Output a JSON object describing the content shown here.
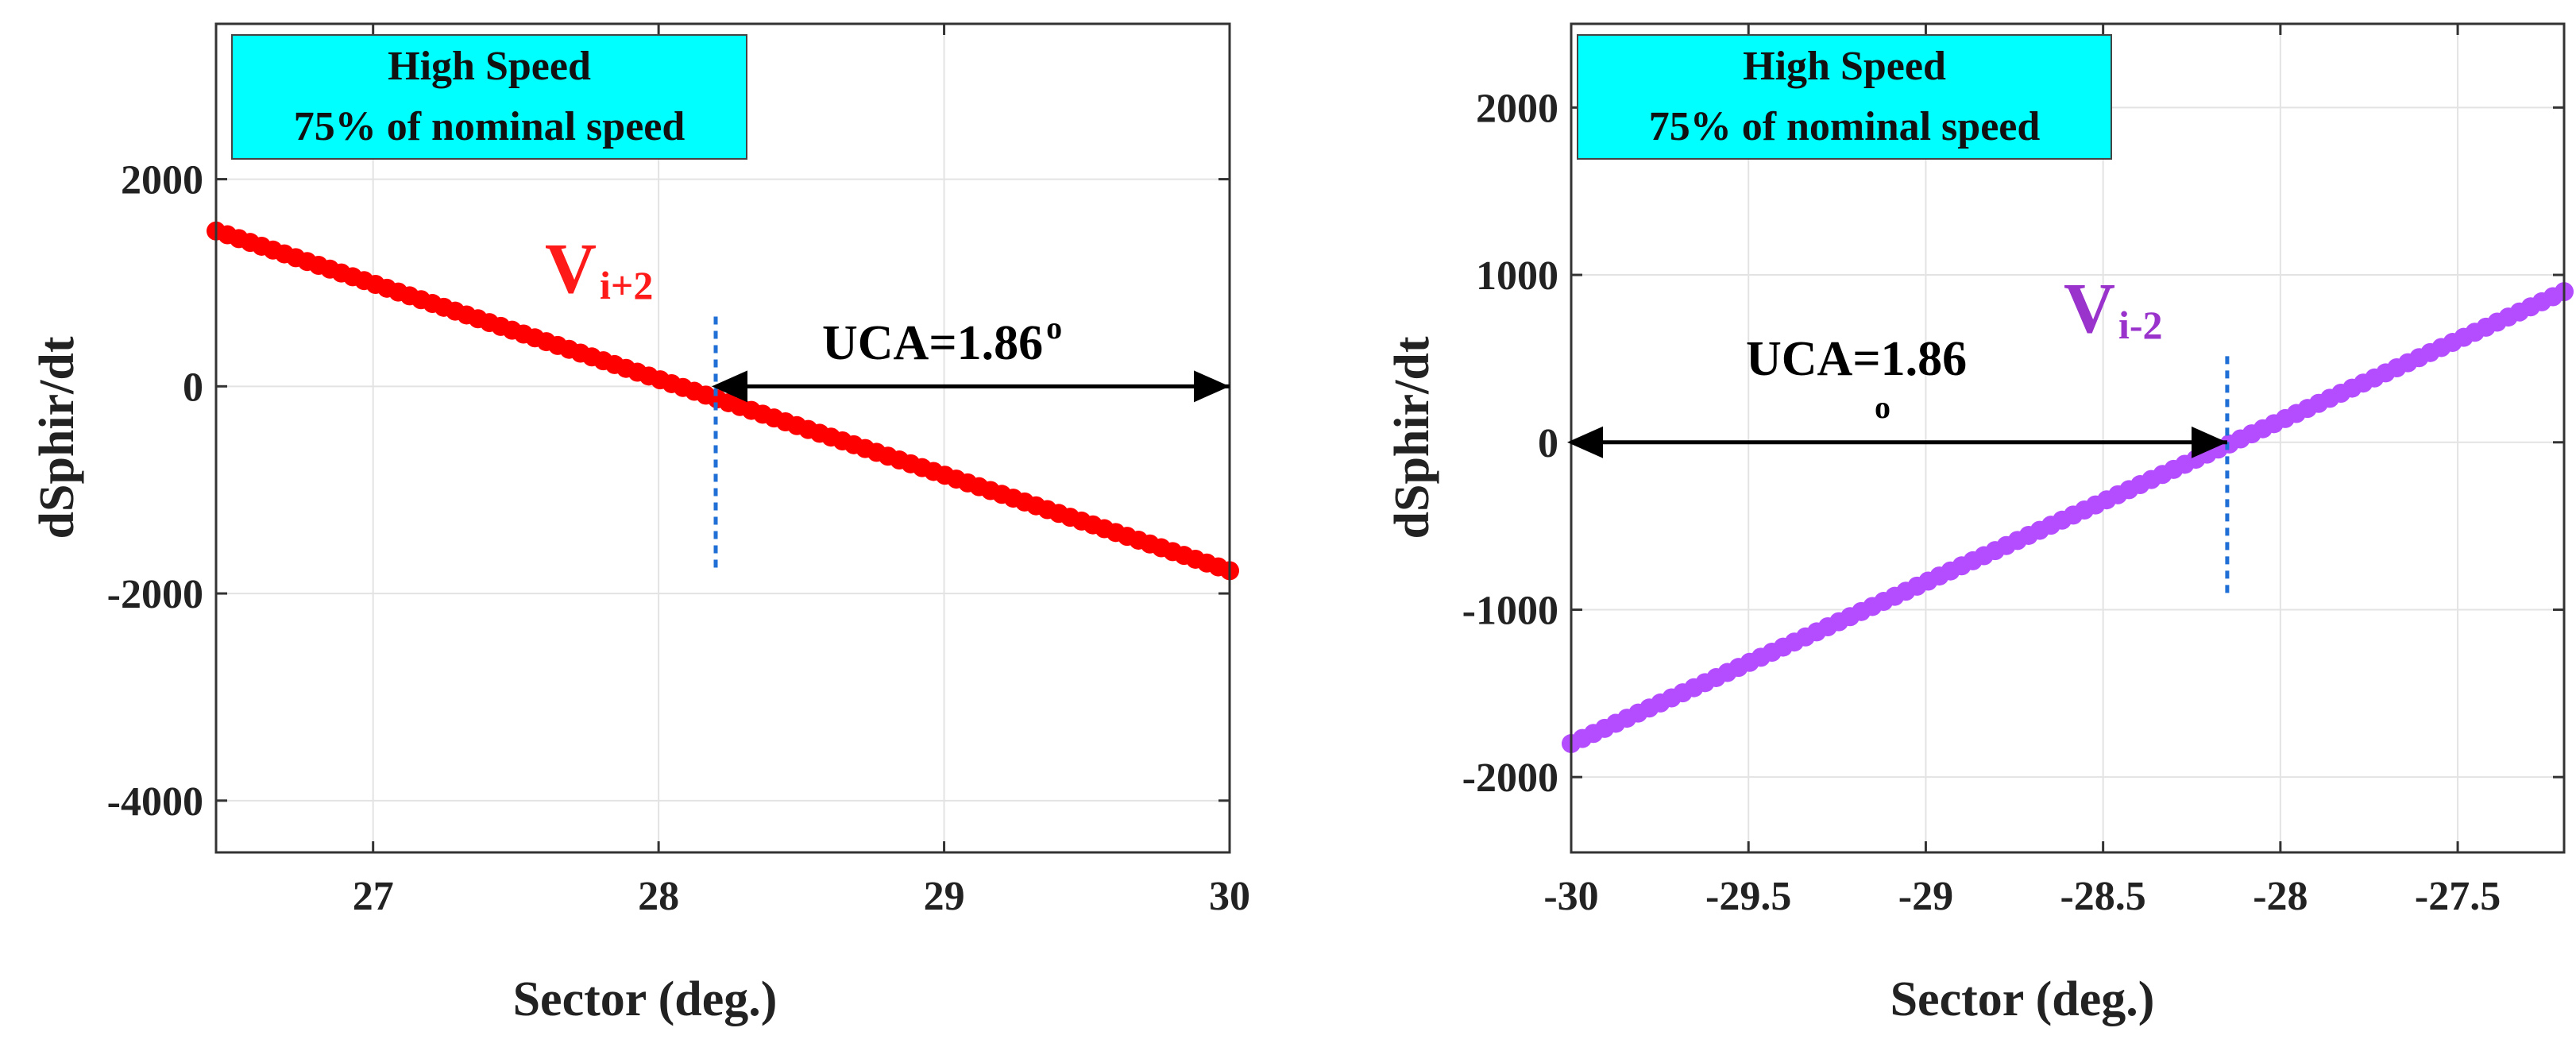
{
  "chart_data": [
    {
      "type": "scatter",
      "title": "",
      "xlabel": "Sector (deg.)",
      "ylabel": "dSphir/dt",
      "xlim": [
        26.45,
        30.0
      ],
      "ylim": [
        -4500,
        3500
      ],
      "xticks": [
        27,
        28,
        29,
        30
      ],
      "yticks": [
        -4000,
        -2000,
        0,
        2000
      ],
      "xtick_labels": [
        "27",
        "28",
        "29",
        "30"
      ],
      "ytick_labels": [
        "-4000",
        "-2000",
        "0",
        "2000"
      ],
      "grid": true,
      "series": [
        {
          "name": "V_i+2",
          "color": "#ff0000",
          "x_range": [
            26.45,
            30.0
          ],
          "y_at_range": [
            1500,
            -1780
          ],
          "points": 90
        }
      ],
      "annotation_box": {
        "line1": "High Speed",
        "line2": "75% of nominal speed",
        "fill": "#00ffff",
        "placement": "top-left"
      },
      "vector_label": {
        "main": "V",
        "sub": "i+2",
        "color": "#ff1a1a",
        "x": 27.6,
        "y": 1000
      },
      "zero_cross": {
        "x": 28.2,
        "y_from": -1750,
        "y_to": 700,
        "color": "#1f6fd6"
      },
      "uca_arrow": {
        "from_x": 28.2,
        "to_x": 30.0,
        "y": 0,
        "text": "UCA=1.86",
        "sup": "o"
      }
    },
    {
      "type": "scatter",
      "title": "",
      "xlabel": "Sector (deg.)",
      "ylabel": "dSphir/dt",
      "xlim": [
        -30.0,
        -27.2
      ],
      "ylim": [
        -2450,
        2500
      ],
      "xticks": [
        -30,
        -29.5,
        -29,
        -28.5,
        -28,
        -27.5
      ],
      "yticks": [
        -2000,
        -1000,
        0,
        1000,
        2000
      ],
      "xtick_labels": [
        "-30",
        "-29.5",
        "-29",
        "-28.5",
        "-28",
        "-27.5"
      ],
      "ytick_labels": [
        "-2000",
        "-1000",
        "0",
        "1000",
        "2000"
      ],
      "grid": true,
      "series": [
        {
          "name": "V_i-2",
          "color": "#b34dff",
          "x_range": [
            -30.0,
            -27.2
          ],
          "y_at_range": [
            -1800,
            900
          ],
          "points": 90
        }
      ],
      "annotation_box": {
        "line1": "High Speed",
        "line2": "75% of nominal speed",
        "fill": "#00ffff",
        "placement": "top-left"
      },
      "vector_label": {
        "main": "V",
        "sub": "i-2",
        "color": "#9933cc",
        "x": -28.45,
        "y": 700
      },
      "zero_cross": {
        "x": -28.15,
        "y_from": -900,
        "y_to": 550,
        "color": "#1f6fd6"
      },
      "uca_arrow": {
        "from_x": -30.0,
        "to_x": -28.15,
        "y": 0,
        "text": "UCA=1.86",
        "sub": "o"
      }
    }
  ]
}
